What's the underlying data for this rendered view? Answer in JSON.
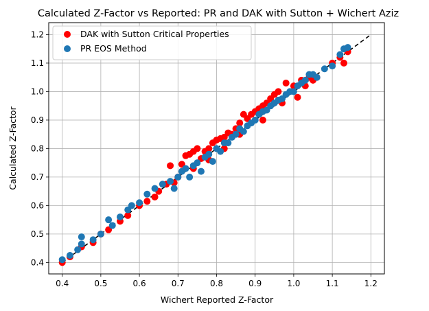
{
  "chart_data": {
    "type": "scatter",
    "title": "Calculated Z-Factor vs Reported: PR and DAK with Sutton + Wichert Aziz",
    "xlabel": "Wichert Reported Z-Factor",
    "ylabel": "Calculated Z-Factor",
    "xlim": [
      0.365,
      1.235
    ],
    "ylim": [
      0.36,
      1.242
    ],
    "xticks": [
      "0.4",
      "0.5",
      "0.6",
      "0.7",
      "0.8",
      "0.9",
      "1.0",
      "1.1",
      "1.2"
    ],
    "yticks": [
      "0.4",
      "0.5",
      "0.6",
      "0.7",
      "0.8",
      "0.9",
      "1.0",
      "1.1",
      "1.2"
    ],
    "grid": true,
    "legend_position": "upper-left",
    "reference_line": {
      "style": "dashed",
      "color": "#000000",
      "from": [
        0.4,
        0.4
      ],
      "to": [
        1.2,
        1.2
      ]
    },
    "series": [
      {
        "name": "DAK with Sutton Critical Properties",
        "color": "#ff0000",
        "points": [
          [
            0.4,
            0.4
          ],
          [
            0.42,
            0.42
          ],
          [
            0.45,
            0.455
          ],
          [
            0.48,
            0.47
          ],
          [
            0.5,
            0.5
          ],
          [
            0.52,
            0.515
          ],
          [
            0.55,
            0.545
          ],
          [
            0.57,
            0.565
          ],
          [
            0.6,
            0.6
          ],
          [
            0.62,
            0.615
          ],
          [
            0.64,
            0.63
          ],
          [
            0.65,
            0.65
          ],
          [
            0.67,
            0.675
          ],
          [
            0.68,
            0.74
          ],
          [
            0.69,
            0.68
          ],
          [
            0.7,
            0.7
          ],
          [
            0.71,
            0.745
          ],
          [
            0.72,
            0.775
          ],
          [
            0.73,
            0.78
          ],
          [
            0.74,
            0.79
          ],
          [
            0.75,
            0.8
          ],
          [
            0.76,
            0.765
          ],
          [
            0.77,
            0.79
          ],
          [
            0.78,
            0.8
          ],
          [
            0.79,
            0.82
          ],
          [
            0.8,
            0.83
          ],
          [
            0.81,
            0.835
          ],
          [
            0.82,
            0.84
          ],
          [
            0.83,
            0.855
          ],
          [
            0.84,
            0.85
          ],
          [
            0.85,
            0.87
          ],
          [
            0.86,
            0.89
          ],
          [
            0.87,
            0.92
          ],
          [
            0.88,
            0.905
          ],
          [
            0.89,
            0.92
          ],
          [
            0.9,
            0.93
          ],
          [
            0.91,
            0.94
          ],
          [
            0.92,
            0.95
          ],
          [
            0.93,
            0.96
          ],
          [
            0.94,
            0.975
          ],
          [
            0.95,
            0.99
          ],
          [
            0.96,
            1.0
          ],
          [
            0.97,
            0.96
          ],
          [
            0.98,
            1.03
          ],
          [
            1.0,
            1.02
          ],
          [
            1.01,
            0.98
          ],
          [
            1.02,
            1.04
          ],
          [
            1.03,
            1.02
          ],
          [
            1.04,
            1.05
          ],
          [
            1.05,
            1.04
          ],
          [
            1.06,
            1.05
          ],
          [
            1.1,
            1.1
          ],
          [
            1.12,
            1.12
          ],
          [
            1.13,
            1.1
          ],
          [
            1.14,
            1.14
          ],
          [
            0.78,
            0.76
          ],
          [
            0.82,
            0.8
          ],
          [
            0.86,
            0.85
          ],
          [
            0.74,
            0.73
          ],
          [
            0.92,
            0.9
          ]
        ]
      },
      {
        "name": "PR EOS Method",
        "color": "#1f77b4",
        "points": [
          [
            0.4,
            0.41
          ],
          [
            0.42,
            0.425
          ],
          [
            0.44,
            0.445
          ],
          [
            0.45,
            0.49
          ],
          [
            0.45,
            0.465
          ],
          [
            0.48,
            0.48
          ],
          [
            0.5,
            0.5
          ],
          [
            0.52,
            0.55
          ],
          [
            0.53,
            0.53
          ],
          [
            0.55,
            0.56
          ],
          [
            0.57,
            0.585
          ],
          [
            0.58,
            0.6
          ],
          [
            0.6,
            0.61
          ],
          [
            0.62,
            0.64
          ],
          [
            0.64,
            0.66
          ],
          [
            0.66,
            0.675
          ],
          [
            0.68,
            0.685
          ],
          [
            0.69,
            0.66
          ],
          [
            0.7,
            0.7
          ],
          [
            0.71,
            0.72
          ],
          [
            0.72,
            0.73
          ],
          [
            0.73,
            0.7
          ],
          [
            0.74,
            0.74
          ],
          [
            0.75,
            0.75
          ],
          [
            0.76,
            0.72
          ],
          [
            0.77,
            0.77
          ],
          [
            0.78,
            0.78
          ],
          [
            0.79,
            0.755
          ],
          [
            0.8,
            0.8
          ],
          [
            0.81,
            0.79
          ],
          [
            0.82,
            0.82
          ],
          [
            0.83,
            0.82
          ],
          [
            0.84,
            0.84
          ],
          [
            0.85,
            0.85
          ],
          [
            0.86,
            0.87
          ],
          [
            0.87,
            0.86
          ],
          [
            0.88,
            0.88
          ],
          [
            0.89,
            0.89
          ],
          [
            0.9,
            0.9
          ],
          [
            0.91,
            0.92
          ],
          [
            0.92,
            0.93
          ],
          [
            0.93,
            0.935
          ],
          [
            0.94,
            0.95
          ],
          [
            0.95,
            0.96
          ],
          [
            0.96,
            0.97
          ],
          [
            0.97,
            0.975
          ],
          [
            0.98,
            0.99
          ],
          [
            0.99,
            1.0
          ],
          [
            1.0,
            1.0
          ],
          [
            1.01,
            1.02
          ],
          [
            1.02,
            1.03
          ],
          [
            1.03,
            1.04
          ],
          [
            1.04,
            1.06
          ],
          [
            1.05,
            1.06
          ],
          [
            1.06,
            1.05
          ],
          [
            1.08,
            1.08
          ],
          [
            1.1,
            1.09
          ],
          [
            1.12,
            1.13
          ],
          [
            1.13,
            1.15
          ],
          [
            1.14,
            1.155
          ]
        ]
      }
    ]
  }
}
